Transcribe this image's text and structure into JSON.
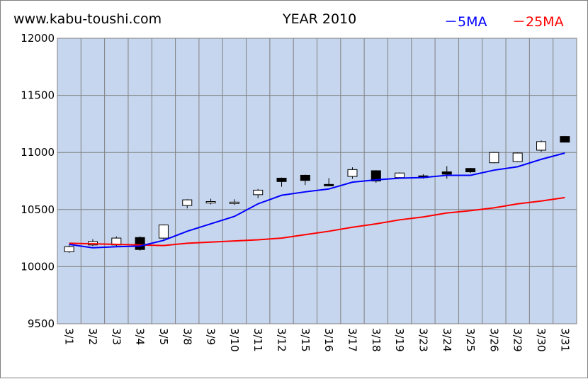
{
  "header": {
    "site": "www.kabu-toushi.com",
    "title": "YEAR 2010"
  },
  "legend": [
    {
      "label": "－5MA",
      "color": "#0000ff"
    },
    {
      "label": "－25MA",
      "color": "#ff0000"
    }
  ],
  "chart_data": {
    "type": "candlestick",
    "ylim": [
      9500,
      12000
    ],
    "y_ticks": [
      "9500",
      "10000",
      "10500",
      "11000",
      "11500",
      "12000"
    ],
    "grid": true,
    "legend_position": "top-right",
    "colors": {
      "plot_bg": "#c6d6ee",
      "grid": "#808080",
      "ma5": "#0000ff",
      "ma25": "#ff0000",
      "up": "#ffffff",
      "down": "#000000"
    },
    "categories": [
      "3/1",
      "3/2",
      "3/3",
      "3/4",
      "3/5",
      "3/8",
      "3/9",
      "3/10",
      "3/11",
      "3/12",
      "3/15",
      "3/16",
      "3/17",
      "3/18",
      "3/19",
      "3/23",
      "3/24",
      "3/25",
      "3/26",
      "3/29",
      "3/30",
      "3/31"
    ],
    "candles": [
      {
        "open": 10130,
        "high": 10190,
        "low": 10120,
        "close": 10175
      },
      {
        "open": 10190,
        "high": 10240,
        "low": 10180,
        "close": 10220
      },
      {
        "open": 10190,
        "high": 10265,
        "low": 10180,
        "close": 10250
      },
      {
        "open": 10255,
        "high": 10265,
        "low": 10140,
        "close": 10150
      },
      {
        "open": 10250,
        "high": 10370,
        "low": 10240,
        "close": 10365
      },
      {
        "open": 10535,
        "high": 10590,
        "low": 10510,
        "close": 10585
      },
      {
        "open": 10560,
        "high": 10595,
        "low": 10545,
        "close": 10570
      },
      {
        "open": 10555,
        "high": 10590,
        "low": 10540,
        "close": 10565
      },
      {
        "open": 10630,
        "high": 10680,
        "low": 10600,
        "close": 10670
      },
      {
        "open": 10775,
        "high": 10780,
        "low": 10700,
        "close": 10745
      },
      {
        "open": 10800,
        "high": 10805,
        "low": 10715,
        "close": 10755
      },
      {
        "open": 10720,
        "high": 10775,
        "low": 10710,
        "close": 10715
      },
      {
        "open": 10790,
        "high": 10870,
        "low": 10770,
        "close": 10850
      },
      {
        "open": 10840,
        "high": 10845,
        "low": 10735,
        "close": 10750
      },
      {
        "open": 10780,
        "high": 10825,
        "low": 10770,
        "close": 10820
      },
      {
        "open": 10795,
        "high": 10810,
        "low": 10770,
        "close": 10780
      },
      {
        "open": 10830,
        "high": 10880,
        "low": 10770,
        "close": 10810
      },
      {
        "open": 10860,
        "high": 10865,
        "low": 10820,
        "close": 10830
      },
      {
        "open": 10910,
        "high": 11005,
        "low": 10905,
        "close": 11000
      },
      {
        "open": 10920,
        "high": 11000,
        "low": 10915,
        "close": 10995
      },
      {
        "open": 11020,
        "high": 11105,
        "low": 11005,
        "close": 11095
      },
      {
        "open": 11140,
        "high": 11145,
        "low": 11090,
        "close": 11090
      }
    ],
    "ma5": [
      10195,
      10165,
      10175,
      10180,
      10230,
      10310,
      10375,
      10440,
      10550,
      10625,
      10655,
      10680,
      10740,
      10760,
      10775,
      10780,
      10800,
      10800,
      10845,
      10875,
      10940,
      10995
    ],
    "ma25": [
      10205,
      10200,
      10195,
      10190,
      10185,
      10205,
      10215,
      10225,
      10235,
      10250,
      10280,
      10310,
      10345,
      10375,
      10410,
      10435,
      10470,
      10490,
      10515,
      10550,
      10575,
      10605
    ]
  }
}
